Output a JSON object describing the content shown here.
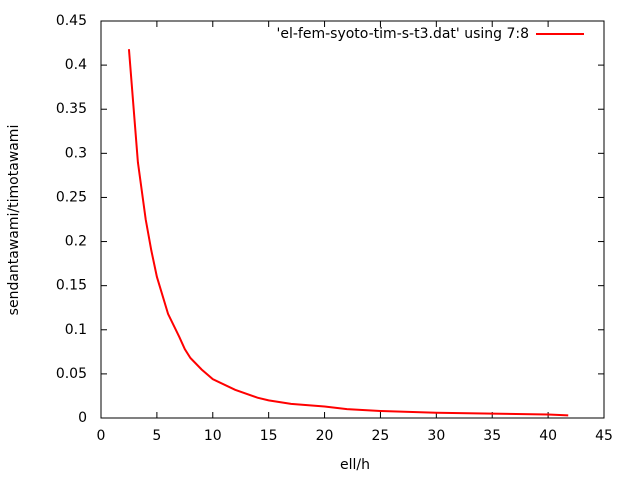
{
  "chart_data": {
    "type": "line",
    "xlabel": "ell/h",
    "ylabel": "sendantawami/timotawami",
    "x": [
      2.5,
      3.3,
      4,
      4.5,
      5,
      6,
      7,
      7.5,
      8,
      9,
      10,
      12,
      14,
      15,
      17,
      20,
      22,
      25,
      30,
      35,
      40,
      41.8
    ],
    "series": [
      {
        "name": "'el-fem-syoto-tim-s-t3.dat' using 7:8",
        "color": "#ff0000",
        "values": [
          0.418,
          0.29,
          0.225,
          0.19,
          0.16,
          0.118,
          0.092,
          0.078,
          0.068,
          0.055,
          0.044,
          0.032,
          0.023,
          0.02,
          0.016,
          0.013,
          0.01,
          0.008,
          0.006,
          0.005,
          0.004,
          0.003
        ]
      }
    ],
    "xlim": [
      0,
      45
    ],
    "xticks": [
      0,
      5,
      10,
      15,
      20,
      25,
      30,
      35,
      40,
      45
    ],
    "ylim": [
      0,
      0.45
    ],
    "yticks": [
      0,
      0.05,
      0.1,
      0.15,
      0.2,
      0.25,
      0.3,
      0.35,
      0.4,
      0.45
    ],
    "legend": "top-right",
    "grid": false
  }
}
